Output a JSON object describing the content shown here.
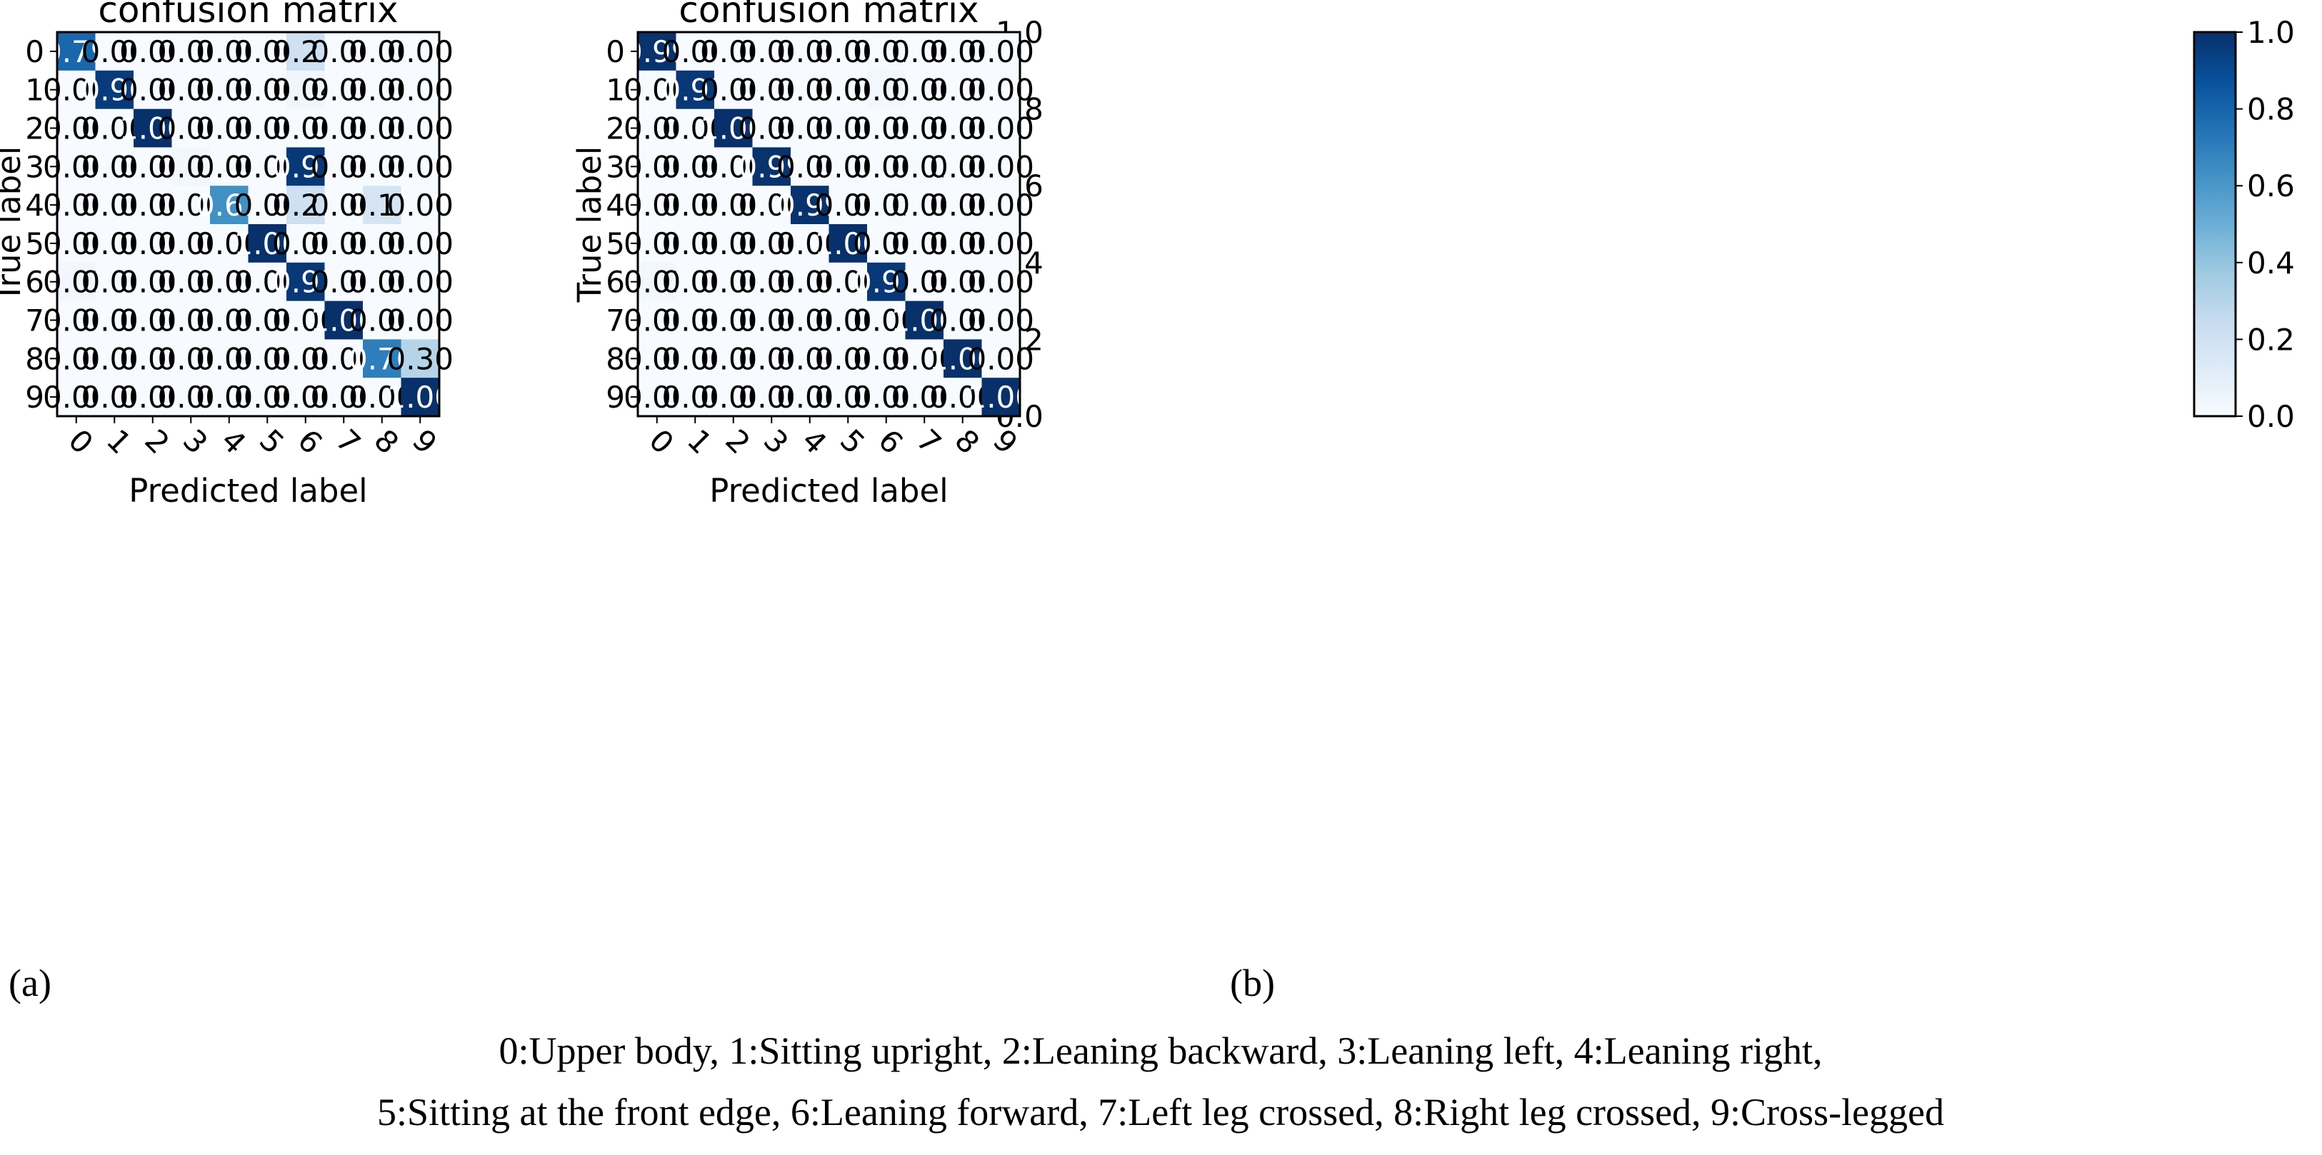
{
  "chart_data": [
    {
      "type": "heatmap",
      "panel_label": "(a)",
      "title": "confusion matrix",
      "xlabel": "Predicted label",
      "ylabel": "True label",
      "x_categories": [
        "0",
        "1",
        "2",
        "3",
        "4",
        "5",
        "6",
        "7",
        "8",
        "9"
      ],
      "y_categories": [
        "0",
        "1",
        "2",
        "3",
        "4",
        "5",
        "6",
        "7",
        "8",
        "9"
      ],
      "values": [
        [
          0.79,
          0.0,
          0.0,
          0.0,
          0.0,
          0.0,
          0.21,
          0.0,
          0.0,
          0.0
        ],
        [
          0.0,
          0.96,
          0.0,
          0.0,
          0.0,
          0.0,
          0.04,
          0.0,
          0.0,
          0.0
        ],
        [
          0.0,
          0.0,
          1.0,
          0.0,
          0.0,
          0.0,
          0.0,
          0.0,
          0.0,
          0.0
        ],
        [
          0.0,
          0.0,
          0.0,
          0.03,
          0.0,
          0.0,
          0.97,
          0.0,
          0.0,
          0.0
        ],
        [
          0.0,
          0.0,
          0.0,
          0.0,
          0.63,
          0.0,
          0.21,
          0.0,
          0.17,
          0.0
        ],
        [
          0.0,
          0.0,
          0.0,
          0.0,
          0.0,
          1.0,
          0.0,
          0.0,
          0.0,
          0.0
        ],
        [
          0.03,
          0.0,
          0.0,
          0.0,
          0.0,
          0.0,
          0.97,
          0.0,
          0.0,
          0.0
        ],
        [
          0.0,
          0.0,
          0.0,
          0.0,
          0.0,
          0.0,
          0.0,
          1.0,
          0.0,
          0.0
        ],
        [
          0.0,
          0.0,
          0.0,
          0.0,
          0.0,
          0.0,
          0.0,
          0.0,
          0.7,
          0.3
        ],
        [
          0.0,
          0.0,
          0.0,
          0.0,
          0.0,
          0.0,
          0.0,
          0.0,
          0.0,
          1.0
        ]
      ],
      "colorbar": {
        "range": [
          0.0,
          1.0
        ],
        "ticks": [
          "0.0",
          "0.2",
          "0.4",
          "0.6",
          "0.8",
          "1.0"
        ],
        "colormap": "Blues"
      }
    },
    {
      "type": "heatmap",
      "panel_label": "(b)",
      "title": "confusion matrix",
      "xlabel": "Predicted label",
      "ylabel": "True label",
      "x_categories": [
        "0",
        "1",
        "2",
        "3",
        "4",
        "5",
        "6",
        "7",
        "8",
        "9"
      ],
      "y_categories": [
        "0",
        "1",
        "2",
        "3",
        "4",
        "5",
        "6",
        "7",
        "8",
        "9"
      ],
      "values": [
        [
          0.99,
          0.0,
          0.0,
          0.0,
          0.0,
          0.0,
          0.01,
          0.0,
          0.0,
          0.0
        ],
        [
          0.0,
          0.97,
          0.0,
          0.0,
          0.0,
          0.0,
          0.03,
          0.0,
          0.0,
          0.0
        ],
        [
          0.0,
          0.0,
          1.0,
          0.0,
          0.0,
          0.0,
          0.0,
          0.0,
          0.0,
          0.0
        ],
        [
          0.0,
          0.0,
          0.0,
          0.99,
          0.0,
          0.0,
          0.0,
          0.01,
          0.0,
          0.0
        ],
        [
          0.0,
          0.0,
          0.0,
          0.0,
          0.99,
          0.0,
          0.01,
          0.0,
          0.0,
          0.0
        ],
        [
          0.0,
          0.0,
          0.0,
          0.0,
          0.0,
          1.0,
          0.0,
          0.0,
          0.0,
          0.0
        ],
        [
          0.03,
          0.0,
          0.0,
          0.0,
          0.0,
          0.0,
          0.97,
          0.0,
          0.0,
          0.0
        ],
        [
          0.0,
          0.0,
          0.0,
          0.0,
          0.0,
          0.0,
          0.0,
          1.0,
          0.0,
          0.0
        ],
        [
          0.0,
          0.0,
          0.0,
          0.0,
          0.0,
          0.0,
          0.0,
          0.0,
          1.0,
          0.0
        ],
        [
          0.0,
          0.0,
          0.0,
          0.0,
          0.0,
          0.0,
          0.0,
          0.0,
          0.0,
          1.0
        ]
      ],
      "colorbar": {
        "range": [
          0.0,
          1.0
        ],
        "ticks": [
          "0.0",
          "0.2",
          "0.4",
          "0.6",
          "0.8",
          "1.0"
        ],
        "colormap": "Blues"
      }
    }
  ],
  "caption": {
    "line1": "0:Upper body, 1:Sitting upright, 2:Leaning backward, 3:Leaning left, 4:Leaning right,",
    "line2": "5:Sitting at the front edge, 6:Leaning forward, 7:Left leg crossed, 8:Right leg crossed, 9:Cross-legged"
  },
  "colors": {
    "low": "#f7fbff",
    "high": "#08306b",
    "text_dark": "#000000",
    "text_light": "#ffffff"
  }
}
